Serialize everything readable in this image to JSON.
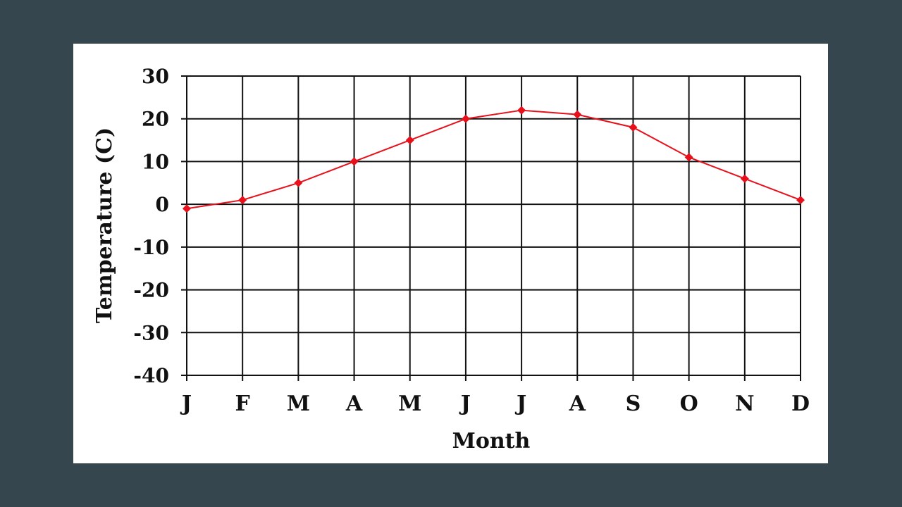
{
  "chart_data": {
    "type": "line",
    "xlabel": "Month",
    "ylabel": "Temperature (C)",
    "categories": [
      "J",
      "F",
      "M",
      "A",
      "M",
      "J",
      "J",
      "A",
      "S",
      "O",
      "N",
      "D"
    ],
    "values": [
      -1,
      1,
      5,
      10,
      15,
      20,
      22,
      21,
      18,
      11,
      6,
      1
    ],
    "ylim": [
      -40,
      30
    ],
    "yticks": [
      30,
      20,
      10,
      0,
      -10,
      -20,
      -30,
      -40
    ],
    "grid": true,
    "line_color": "#e8101a",
    "marker": "diamond"
  }
}
